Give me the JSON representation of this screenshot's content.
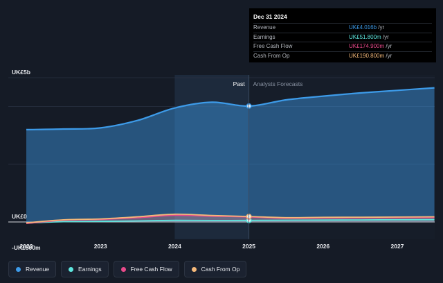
{
  "chart_data": {
    "type": "line",
    "title": "",
    "x_ticks": [
      "2022",
      "2023",
      "2024",
      "2025",
      "2026",
      "2027"
    ],
    "y_ticks": [
      {
        "label": "UK£5b",
        "value": 5000
      },
      {
        "label": "UK£0",
        "value": 0
      },
      {
        "label": "-UK£500m",
        "value": -500
      }
    ],
    "ylim": [
      -500,
      5000
    ],
    "xlim": [
      2022,
      2027.5
    ],
    "divider": {
      "x": 2025.0,
      "past_label": "Past",
      "forecast_label": "Analysts Forecasts"
    },
    "series": [
      {
        "name": "Revenue",
        "color": "#3d9be9",
        "x": [
          2022.0,
          2022.5,
          2023.0,
          2023.5,
          2024.0,
          2024.5,
          2025.0,
          2025.5,
          2026.0,
          2026.5,
          2027.0,
          2027.5
        ],
        "y": [
          3200,
          3220,
          3260,
          3520,
          3950,
          4150,
          4016,
          4230,
          4360,
          4470,
          4560,
          4650
        ]
      },
      {
        "name": "Earnings",
        "color": "#5ee7df",
        "x": [
          2022.0,
          2022.5,
          2023.0,
          2023.5,
          2024.0,
          2024.5,
          2025.0,
          2025.5,
          2026.0,
          2026.5,
          2027.0,
          2027.5
        ],
        "y": [
          -40,
          10,
          20,
          35,
          55,
          50,
          51.8,
          60,
          65,
          70,
          75,
          80
        ]
      },
      {
        "name": "Free Cash Flow",
        "color": "#e84a8a",
        "x": [
          2022.0,
          2022.5,
          2023.0,
          2023.5,
          2024.0,
          2024.5,
          2025.0,
          2025.5,
          2026.0,
          2026.5,
          2027.0,
          2027.5
        ],
        "y": [
          -50,
          60,
          90,
          150,
          230,
          200,
          174.9,
          130,
          140,
          145,
          150,
          155
        ]
      },
      {
        "name": "Cash From Op",
        "color": "#f5b97a",
        "x": [
          2022.0,
          2022.5,
          2023.0,
          2023.5,
          2024.0,
          2024.5,
          2025.0,
          2025.5,
          2026.0,
          2026.5,
          2027.0,
          2027.5
        ],
        "y": [
          -30,
          75,
          105,
          180,
          270,
          225,
          190.8,
          150,
          160,
          165,
          170,
          180
        ]
      }
    ],
    "legend": [
      "Revenue",
      "Earnings",
      "Free Cash Flow",
      "Cash From Op"
    ],
    "legend_position": "bottom"
  },
  "tooltip": {
    "date": "Dec 31 2024",
    "rows": [
      {
        "label": "Revenue",
        "value": "UK£4.016b",
        "unit": "/yr",
        "color": "#3d9be9"
      },
      {
        "label": "Earnings",
        "value": "UK£51.800m",
        "unit": "/yr",
        "color": "#5ee7df"
      },
      {
        "label": "Free Cash Flow",
        "value": "UK£174.900m",
        "unit": "/yr",
        "color": "#e84a8a"
      },
      {
        "label": "Cash From Op",
        "value": "UK£190.800m",
        "unit": "/yr",
        "color": "#f5b97a"
      }
    ]
  }
}
